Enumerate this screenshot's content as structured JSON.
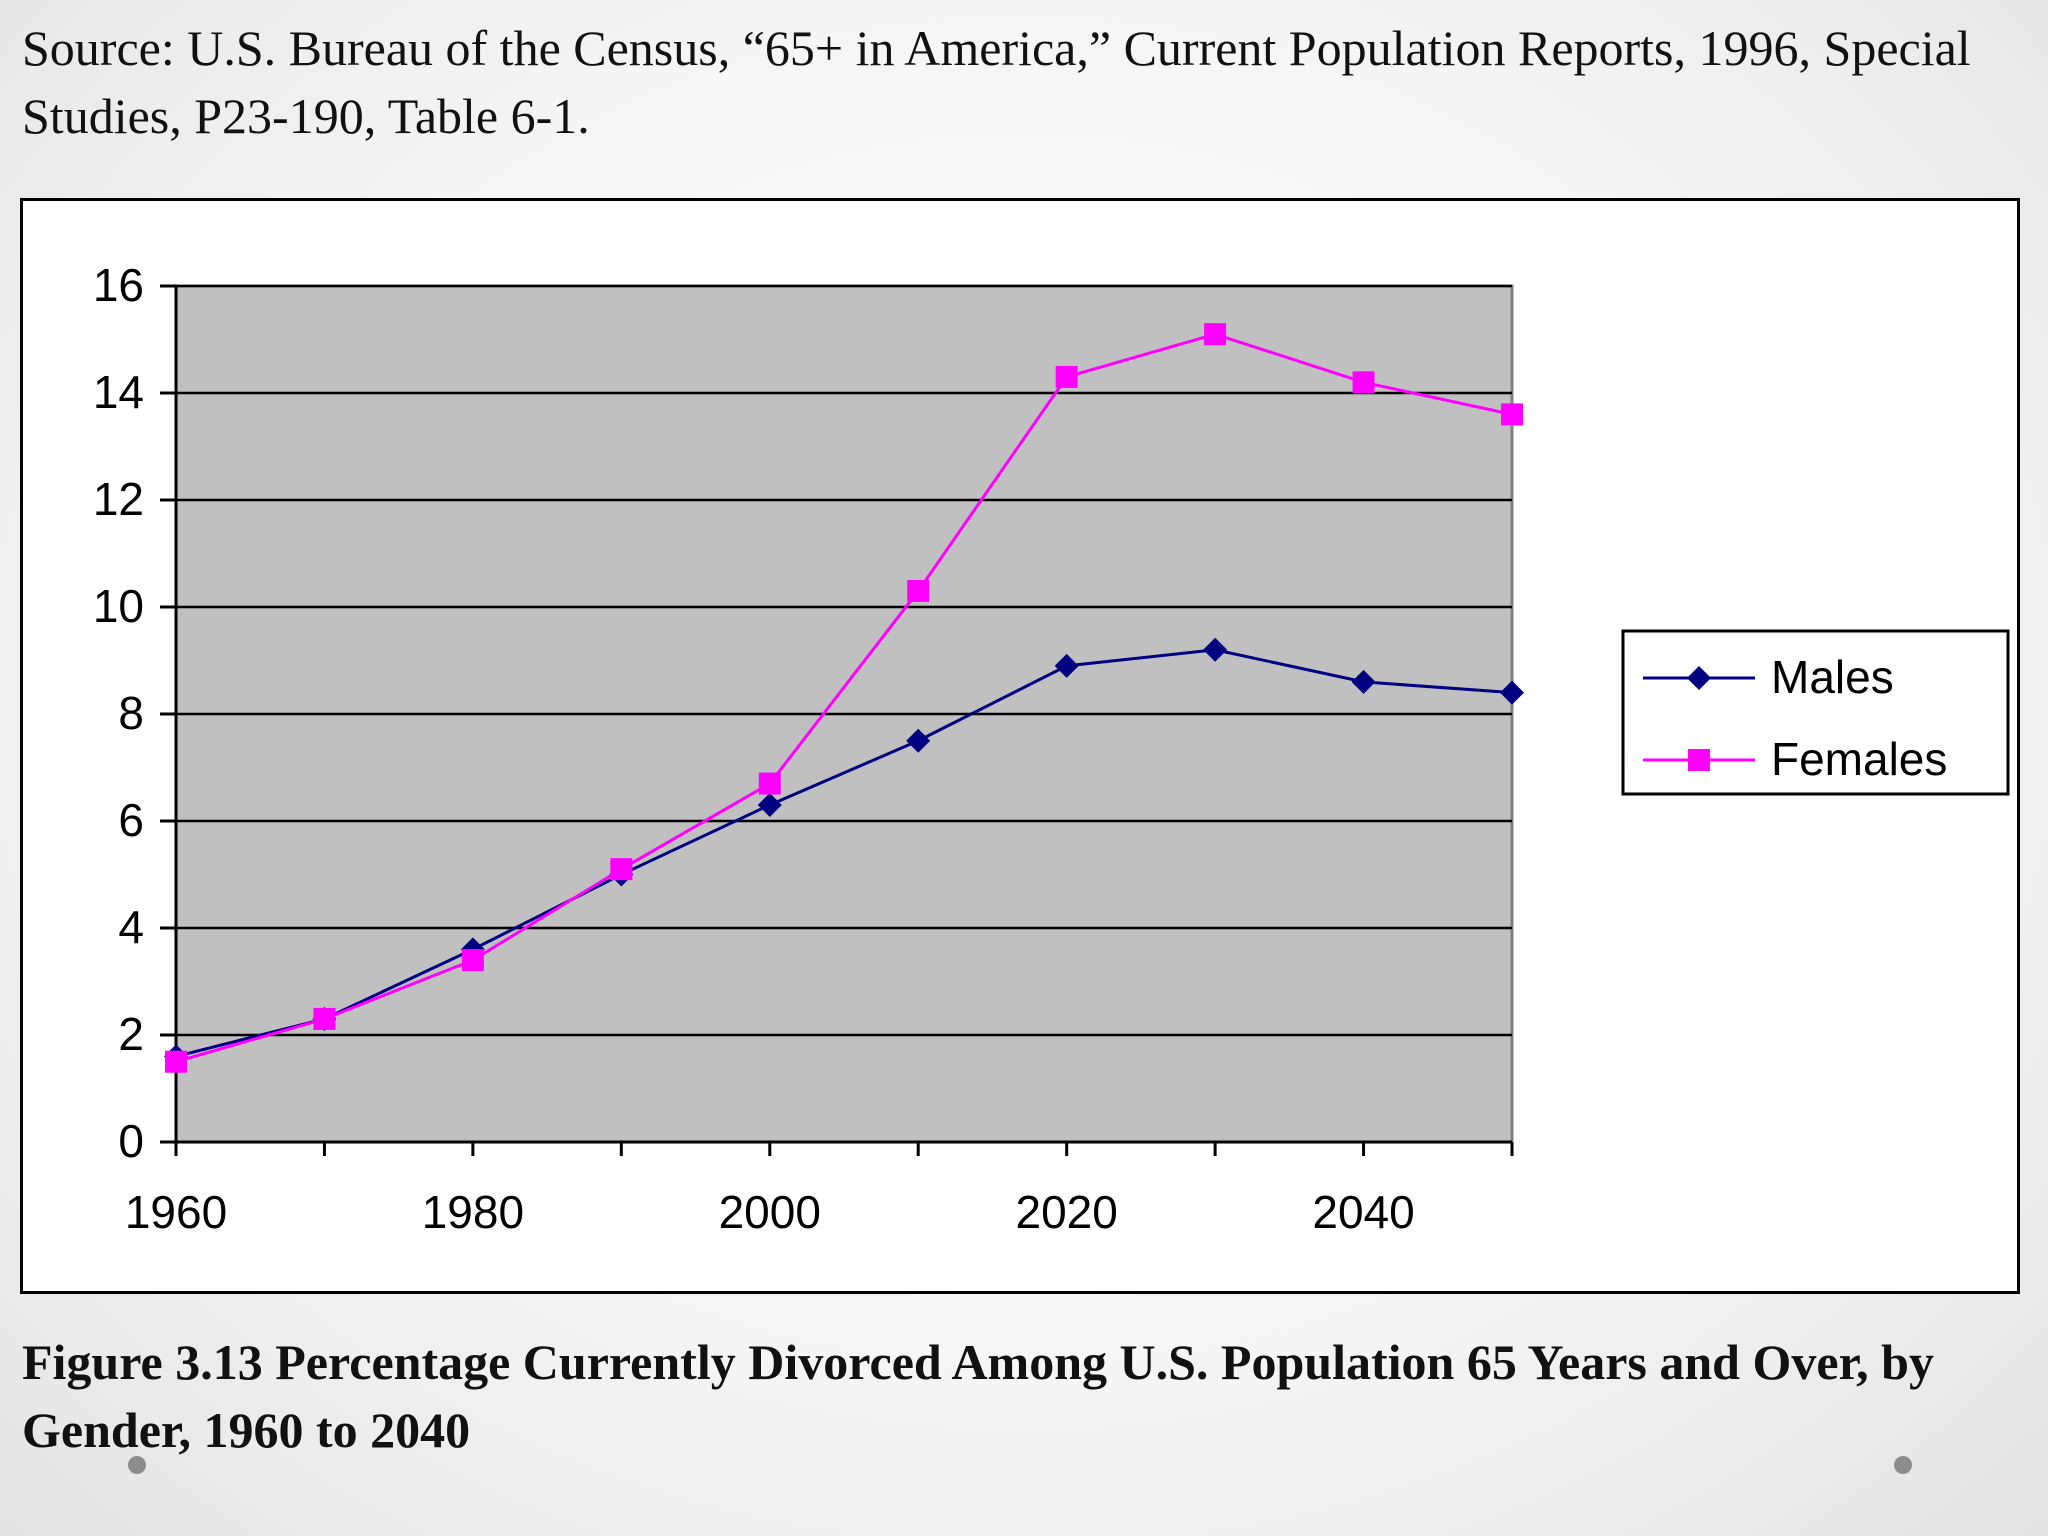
{
  "source_text": "Source: U.S. Bureau of the Census, “65+ in America,” Current Population Reports, 1996, Special Studies, P23-190, Table 6-1.",
  "caption": "Figure 3.13  Percentage Currently Divorced Among U.S. Population 65 Years and Over, by Gender, 1960 to 2040",
  "chart_data": {
    "type": "line",
    "title": "",
    "xlabel": "",
    "ylabel": "",
    "xlim": [
      1960,
      2050
    ],
    "ylim": [
      0,
      16
    ],
    "x_ticks": [
      1960,
      1980,
      2000,
      2020,
      2040
    ],
    "y_ticks": [
      0,
      2,
      4,
      6,
      8,
      10,
      12,
      14,
      16
    ],
    "grid": true,
    "legend_position": "right",
    "plot_background": "#c0c0c0",
    "x": [
      1960,
      1970,
      1980,
      1990,
      2000,
      2010,
      2020,
      2030,
      2040,
      2050
    ],
    "series": [
      {
        "name": "Males",
        "marker": "diamond",
        "color": "#000080",
        "values": [
          1.6,
          2.3,
          3.6,
          5.0,
          6.3,
          7.5,
          8.9,
          9.2,
          8.6,
          8.4
        ]
      },
      {
        "name": "Females",
        "marker": "square",
        "color": "#ff00ff",
        "values": [
          1.5,
          2.3,
          3.4,
          5.1,
          6.7,
          10.3,
          14.3,
          15.1,
          14.2,
          13.6
        ]
      }
    ]
  }
}
